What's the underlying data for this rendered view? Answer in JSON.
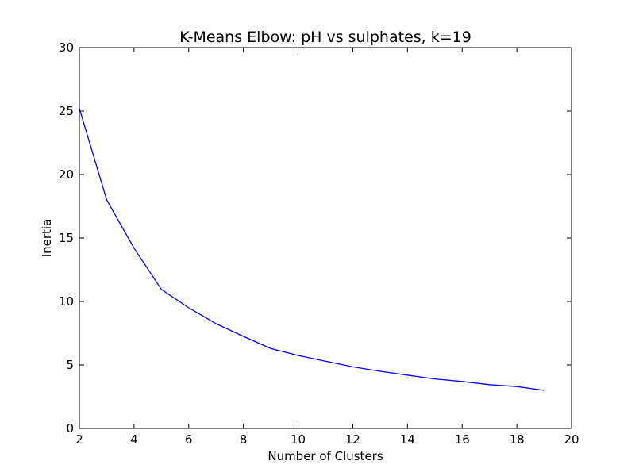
{
  "chart_data": {
    "type": "line",
    "title": "K-Means Elbow: pH vs sulphates, k=19",
    "xlabel": "Number of Clusters",
    "ylabel": "Inertia",
    "xlim": [
      2,
      20
    ],
    "ylim": [
      0,
      30
    ],
    "x_ticks": [
      2,
      4,
      6,
      8,
      10,
      12,
      14,
      16,
      18,
      20
    ],
    "y_ticks": [
      0,
      5,
      10,
      15,
      20,
      25,
      30
    ],
    "grid": false,
    "series": [
      {
        "color": "#0000ff",
        "x": [
          2,
          3,
          4,
          5,
          6,
          7,
          8,
          9,
          10,
          11,
          12,
          13,
          14,
          15,
          16,
          17,
          18,
          19
        ],
        "values": [
          25.2,
          18.0,
          14.2,
          10.95,
          9.5,
          8.25,
          7.25,
          6.3,
          5.75,
          5.3,
          4.85,
          4.5,
          4.2,
          3.9,
          3.7,
          3.45,
          3.3,
          3.0
        ]
      }
    ]
  }
}
